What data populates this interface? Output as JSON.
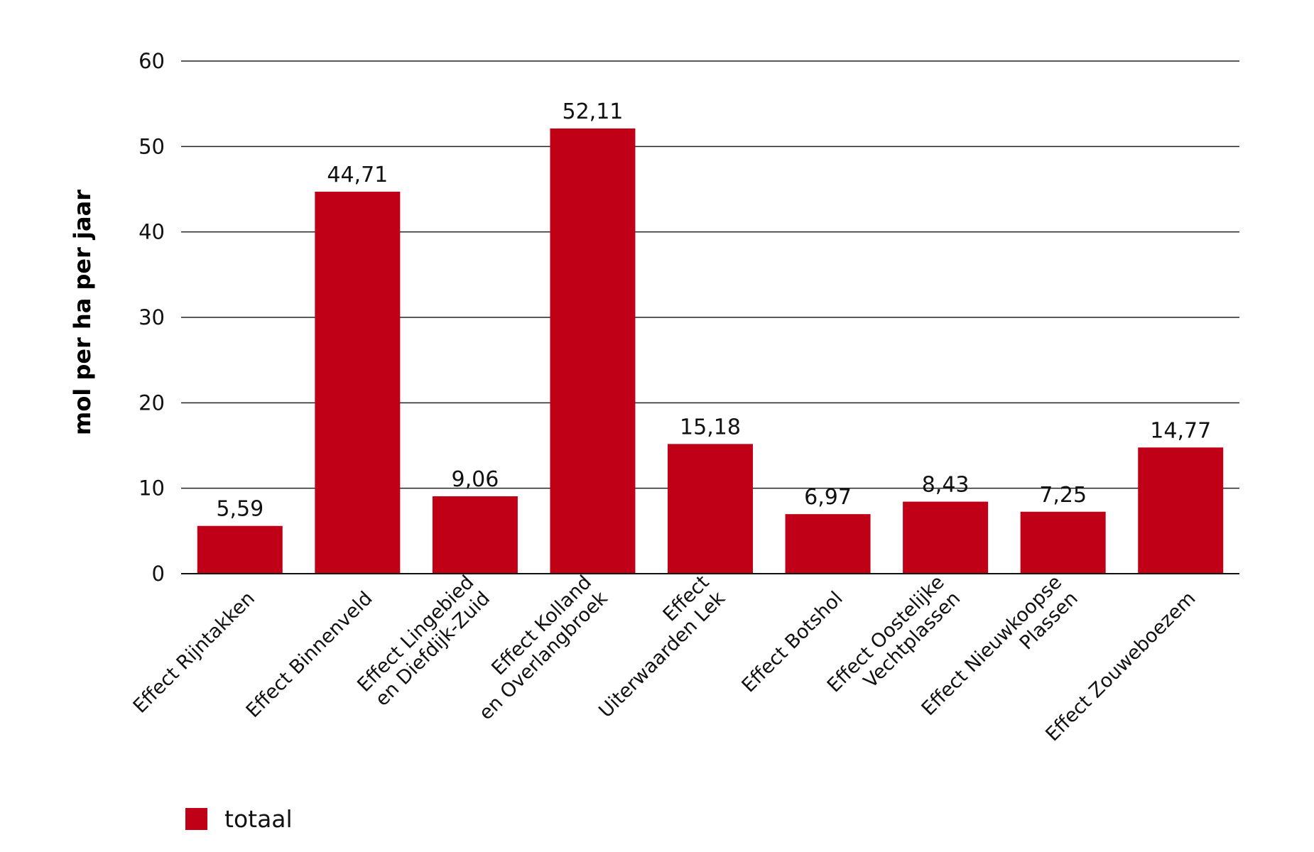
{
  "chart_data": {
    "type": "bar",
    "categories": [
      [
        "Effect Rijntakken"
      ],
      [
        "Effect Binnenveld"
      ],
      [
        "Effect Lingebied",
        "en Diefdijk-Zuid"
      ],
      [
        "Effect Kolland",
        "en Overlangbroek"
      ],
      [
        "Effect",
        "Uiterwaarden Lek"
      ],
      [
        "Effect Botshol"
      ],
      [
        "Effect Oostelijke",
        "Vechtplassen"
      ],
      [
        "Effect Nieuwkoopse",
        "Plassen"
      ],
      [
        "Effect Zouweboezem"
      ]
    ],
    "series": [
      {
        "name": "totaal",
        "values": [
          5.59,
          44.71,
          9.06,
          52.11,
          15.18,
          6.97,
          8.43,
          7.25,
          14.77
        ],
        "labels": [
          "5,59",
          "44,71",
          "9,06",
          "52,11",
          "15,18",
          "6,97",
          "8,43",
          "7,25",
          "14,77"
        ],
        "color": "#c00017"
      }
    ],
    "ylabel": "mol per ha per jaar",
    "ylim": [
      0,
      60
    ],
    "yticks": [
      0,
      10,
      20,
      30,
      40,
      50,
      60
    ],
    "grid": true,
    "legend": "bottom-left"
  }
}
